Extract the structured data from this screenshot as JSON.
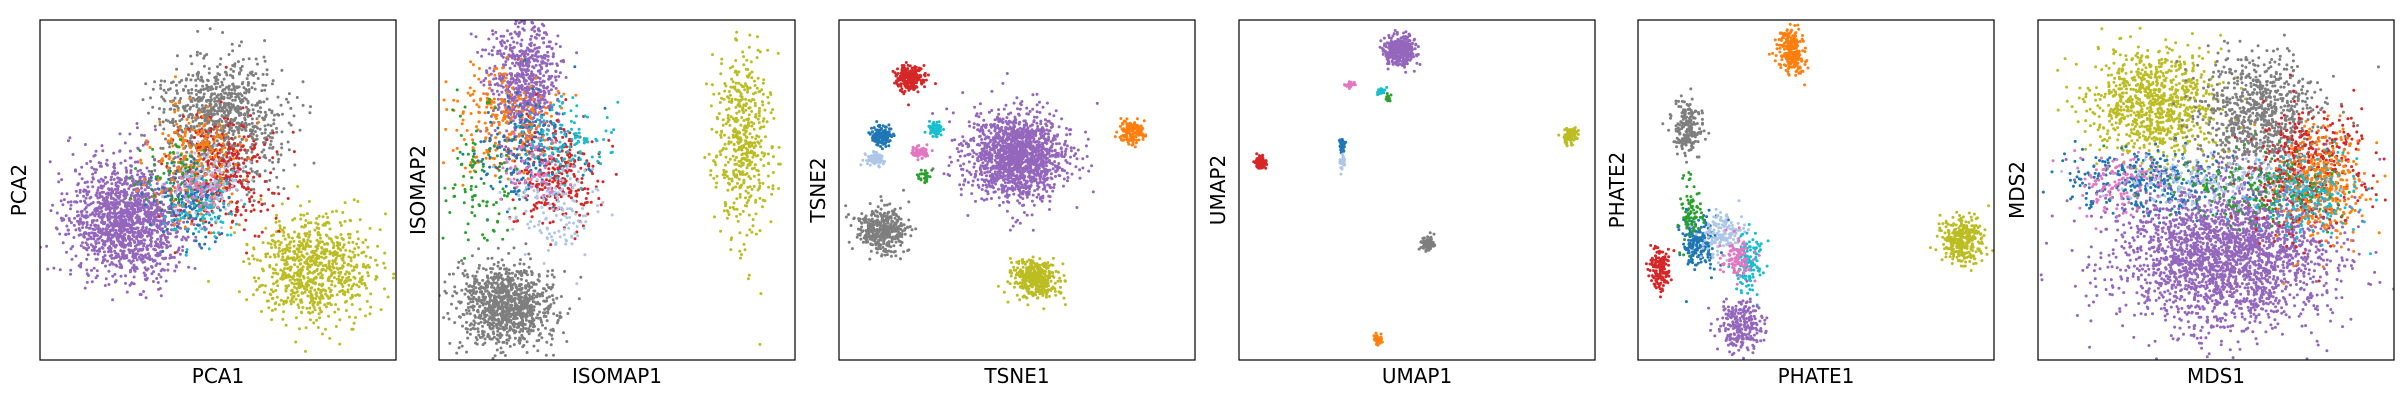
{
  "chart_data": [
    {
      "type": "scatter",
      "xlabel": "PCA1",
      "ylabel": "PCA2",
      "ticks_visible": false,
      "grid": false,
      "legend": "none",
      "clusters": [
        {
          "color": "#9467bd",
          "cx": 0.25,
          "cy": 0.59,
          "sx": 0.085,
          "sy": 0.085,
          "n": 1500
        },
        {
          "color": "#bcbd22",
          "cx": 0.77,
          "cy": 0.73,
          "sx": 0.08,
          "sy": 0.075,
          "n": 800
        },
        {
          "color": "#7f7f7f",
          "cx": 0.51,
          "cy": 0.29,
          "sx": 0.085,
          "sy": 0.09,
          "n": 900
        },
        {
          "color": "#d62728",
          "cx": 0.52,
          "cy": 0.45,
          "sx": 0.07,
          "sy": 0.08,
          "n": 350
        },
        {
          "color": "#ff7f0e",
          "cx": 0.44,
          "cy": 0.42,
          "sx": 0.07,
          "sy": 0.08,
          "n": 250
        },
        {
          "color": "#1f77b4",
          "cx": 0.42,
          "cy": 0.52,
          "sx": 0.05,
          "sy": 0.06,
          "n": 150
        },
        {
          "color": "#17becf",
          "cx": 0.45,
          "cy": 0.55,
          "sx": 0.05,
          "sy": 0.05,
          "n": 100
        },
        {
          "color": "#aec7e8",
          "cx": 0.47,
          "cy": 0.48,
          "sx": 0.05,
          "sy": 0.05,
          "n": 100
        },
        {
          "color": "#2ca02c",
          "cx": 0.38,
          "cy": 0.45,
          "sx": 0.05,
          "sy": 0.05,
          "n": 60
        },
        {
          "color": "#e377c2",
          "cx": 0.46,
          "cy": 0.5,
          "sx": 0.04,
          "sy": 0.04,
          "n": 60
        }
      ]
    },
    {
      "type": "scatter",
      "xlabel": "ISOMAP1",
      "ylabel": "ISOMAP2",
      "ticks_visible": false,
      "grid": false,
      "legend": "none",
      "clusters": [
        {
          "color": "#7f7f7f",
          "cx": 0.19,
          "cy": 0.84,
          "sx": 0.065,
          "sy": 0.06,
          "n": 1000
        },
        {
          "color": "#9467bd",
          "cx": 0.24,
          "cy": 0.18,
          "sx": 0.05,
          "sy": 0.09,
          "n": 700
        },
        {
          "color": "#bcbd22",
          "cx": 0.85,
          "cy": 0.37,
          "sx": 0.04,
          "sy": 0.14,
          "n": 500
        },
        {
          "color": "#d62728",
          "cx": 0.33,
          "cy": 0.46,
          "sx": 0.06,
          "sy": 0.07,
          "n": 300
        },
        {
          "color": "#ff7f0e",
          "cx": 0.18,
          "cy": 0.3,
          "sx": 0.07,
          "sy": 0.09,
          "n": 250
        },
        {
          "color": "#1f77b4",
          "cx": 0.24,
          "cy": 0.38,
          "sx": 0.07,
          "sy": 0.08,
          "n": 200
        },
        {
          "color": "#aec7e8",
          "cx": 0.32,
          "cy": 0.55,
          "sx": 0.06,
          "sy": 0.08,
          "n": 150
        },
        {
          "color": "#17becf",
          "cx": 0.35,
          "cy": 0.35,
          "sx": 0.06,
          "sy": 0.06,
          "n": 120
        },
        {
          "color": "#2ca02c",
          "cx": 0.1,
          "cy": 0.48,
          "sx": 0.06,
          "sy": 0.1,
          "n": 100
        },
        {
          "color": "#e377c2",
          "cx": 0.26,
          "cy": 0.44,
          "sx": 0.05,
          "sy": 0.05,
          "n": 60
        }
      ]
    },
    {
      "type": "scatter",
      "xlabel": "TSNE1",
      "ylabel": "TSNE2",
      "ticks_visible": false,
      "grid": false,
      "legend": "none",
      "clusters": [
        {
          "color": "#9467bd",
          "cx": 0.5,
          "cy": 0.4,
          "sx": 0.07,
          "sy": 0.065,
          "n": 1500
        },
        {
          "color": "#d62728",
          "cx": 0.2,
          "cy": 0.17,
          "sx": 0.02,
          "sy": 0.018,
          "n": 250
        },
        {
          "color": "#1f77b4",
          "cx": 0.12,
          "cy": 0.34,
          "sx": 0.015,
          "sy": 0.015,
          "n": 150
        },
        {
          "color": "#aec7e8",
          "cx": 0.1,
          "cy": 0.41,
          "sx": 0.012,
          "sy": 0.01,
          "n": 80
        },
        {
          "color": "#17becf",
          "cx": 0.27,
          "cy": 0.32,
          "sx": 0.01,
          "sy": 0.01,
          "n": 60
        },
        {
          "color": "#e377c2",
          "cx": 0.23,
          "cy": 0.39,
          "sx": 0.012,
          "sy": 0.01,
          "n": 60
        },
        {
          "color": "#2ca02c",
          "cx": 0.24,
          "cy": 0.46,
          "sx": 0.008,
          "sy": 0.008,
          "n": 25
        },
        {
          "color": "#7f7f7f",
          "cx": 0.12,
          "cy": 0.62,
          "sx": 0.035,
          "sy": 0.032,
          "n": 400
        },
        {
          "color": "#bcbd22",
          "cx": 0.55,
          "cy": 0.76,
          "sx": 0.033,
          "sy": 0.03,
          "n": 400
        },
        {
          "color": "#ff7f0e",
          "cx": 0.82,
          "cy": 0.33,
          "sx": 0.018,
          "sy": 0.018,
          "n": 150
        }
      ]
    },
    {
      "type": "scatter",
      "xlabel": "UMAP1",
      "ylabel": "UMAP2",
      "ticks_visible": false,
      "grid": false,
      "legend": "none",
      "clusters": [
        {
          "color": "#9467bd",
          "cx": 0.45,
          "cy": 0.09,
          "sx": 0.02,
          "sy": 0.022,
          "n": 400
        },
        {
          "color": "#d62728",
          "cx": 0.06,
          "cy": 0.42,
          "sx": 0.008,
          "sy": 0.01,
          "n": 80
        },
        {
          "color": "#1f77b4",
          "cx": 0.29,
          "cy": 0.37,
          "sx": 0.005,
          "sy": 0.012,
          "n": 40
        },
        {
          "color": "#aec7e8",
          "cx": 0.29,
          "cy": 0.42,
          "sx": 0.004,
          "sy": 0.012,
          "n": 30
        },
        {
          "color": "#e377c2",
          "cx": 0.31,
          "cy": 0.19,
          "sx": 0.006,
          "sy": 0.005,
          "n": 20
        },
        {
          "color": "#17becf",
          "cx": 0.4,
          "cy": 0.21,
          "sx": 0.006,
          "sy": 0.005,
          "n": 20
        },
        {
          "color": "#2ca02c",
          "cx": 0.42,
          "cy": 0.23,
          "sx": 0.004,
          "sy": 0.006,
          "n": 15
        },
        {
          "color": "#7f7f7f",
          "cx": 0.53,
          "cy": 0.66,
          "sx": 0.01,
          "sy": 0.012,
          "n": 80
        },
        {
          "color": "#bcbd22",
          "cx": 0.93,
          "cy": 0.34,
          "sx": 0.01,
          "sy": 0.012,
          "n": 80
        },
        {
          "color": "#ff7f0e",
          "cx": 0.39,
          "cy": 0.94,
          "sx": 0.007,
          "sy": 0.007,
          "n": 40
        }
      ]
    },
    {
      "type": "scatter",
      "xlabel": "PHATE1",
      "ylabel": "PHATE2",
      "ticks_visible": false,
      "grid": false,
      "legend": "none",
      "clusters": [
        {
          "color": "#ff7f0e",
          "cx": 0.43,
          "cy": 0.09,
          "sx": 0.018,
          "sy": 0.035,
          "n": 250
        },
        {
          "color": "#7f7f7f",
          "cx": 0.14,
          "cy": 0.32,
          "sx": 0.02,
          "sy": 0.04,
          "n": 200
        },
        {
          "color": "#bcbd22",
          "cx": 0.91,
          "cy": 0.65,
          "sx": 0.03,
          "sy": 0.035,
          "n": 300
        },
        {
          "color": "#d62728",
          "cx": 0.06,
          "cy": 0.73,
          "sx": 0.015,
          "sy": 0.03,
          "n": 150
        },
        {
          "color": "#1f77b4",
          "cx": 0.17,
          "cy": 0.65,
          "sx": 0.025,
          "sy": 0.04,
          "n": 200
        },
        {
          "color": "#aec7e8",
          "cx": 0.24,
          "cy": 0.63,
          "sx": 0.03,
          "sy": 0.03,
          "n": 150
        },
        {
          "color": "#17becf",
          "cx": 0.31,
          "cy": 0.72,
          "sx": 0.02,
          "sy": 0.04,
          "n": 120
        },
        {
          "color": "#e377c2",
          "cx": 0.28,
          "cy": 0.7,
          "sx": 0.02,
          "sy": 0.03,
          "n": 100
        },
        {
          "color": "#2ca02c",
          "cx": 0.15,
          "cy": 0.56,
          "sx": 0.015,
          "sy": 0.05,
          "n": 80
        },
        {
          "color": "#9467bd",
          "cx": 0.29,
          "cy": 0.9,
          "sx": 0.03,
          "sy": 0.04,
          "n": 250
        }
      ]
    },
    {
      "type": "scatter",
      "xlabel": "MDS1",
      "ylabel": "MDS2",
      "ticks_visible": false,
      "grid": false,
      "legend": "none",
      "clusters": [
        {
          "color": "#9467bd",
          "cx": 0.53,
          "cy": 0.68,
          "sx": 0.15,
          "sy": 0.11,
          "n": 2500
        },
        {
          "color": "#bcbd22",
          "cx": 0.33,
          "cy": 0.25,
          "sx": 0.09,
          "sy": 0.08,
          "n": 900
        },
        {
          "color": "#7f7f7f",
          "cx": 0.62,
          "cy": 0.28,
          "sx": 0.09,
          "sy": 0.09,
          "n": 800
        },
        {
          "color": "#d62728",
          "cx": 0.75,
          "cy": 0.45,
          "sx": 0.08,
          "sy": 0.09,
          "n": 450
        },
        {
          "color": "#ff7f0e",
          "cx": 0.8,
          "cy": 0.48,
          "sx": 0.06,
          "sy": 0.08,
          "n": 350
        },
        {
          "color": "#1f77b4",
          "cx": 0.3,
          "cy": 0.47,
          "sx": 0.12,
          "sy": 0.05,
          "n": 300
        },
        {
          "color": "#17becf",
          "cx": 0.75,
          "cy": 0.52,
          "sx": 0.07,
          "sy": 0.06,
          "n": 200
        },
        {
          "color": "#aec7e8",
          "cx": 0.5,
          "cy": 0.47,
          "sx": 0.15,
          "sy": 0.04,
          "n": 200
        },
        {
          "color": "#2ca02c",
          "cx": 0.6,
          "cy": 0.5,
          "sx": 0.12,
          "sy": 0.05,
          "n": 150
        },
        {
          "color": "#e377c2",
          "cx": 0.22,
          "cy": 0.48,
          "sx": 0.06,
          "sy": 0.05,
          "n": 120
        }
      ]
    }
  ]
}
